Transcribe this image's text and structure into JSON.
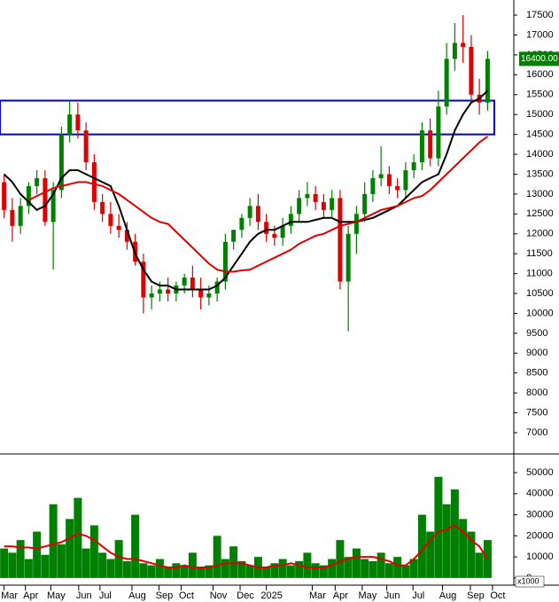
{
  "chart_data": [
    {
      "type": "candlestick",
      "up_color": "#008000",
      "down_color": "#e00000",
      "open": [
        13300,
        12600,
        12200,
        12700,
        13200,
        13400,
        12300,
        13100,
        14500,
        15000,
        14600,
        13800,
        12800,
        12500,
        12200,
        12100,
        11800,
        11300,
        10400,
        10500,
        10600,
        10500,
        10700,
        10900,
        10600,
        10400,
        10500,
        10800,
        11800,
        12100,
        12400,
        12700,
        12300,
        12000,
        11900,
        12200,
        12500,
        12900,
        13000,
        12800,
        12600,
        12900,
        10800,
        12000,
        12500,
        13000,
        13400,
        13500,
        13200,
        13100,
        13600,
        13800,
        14600,
        13900,
        15200,
        16400,
        16800,
        16700,
        15500,
        15300
      ],
      "high": [
        13500,
        12900,
        12900,
        13300,
        13600,
        13600,
        13300,
        14700,
        15350,
        15300,
        14800,
        14000,
        13000,
        12800,
        12500,
        12300,
        12000,
        11500,
        10700,
        10800,
        10900,
        10800,
        11000,
        11200,
        10900,
        10700,
        10900,
        12000,
        12100,
        12500,
        12900,
        13000,
        12500,
        12200,
        12400,
        12700,
        13100,
        13300,
        13200,
        13000,
        13100,
        13100,
        12200,
        12700,
        13300,
        13600,
        14200,
        13700,
        13400,
        13800,
        14000,
        14800,
        14900,
        15600,
        16800,
        17300,
        17500,
        17000,
        15900,
        16600
      ],
      "low": [
        12400,
        11800,
        12000,
        12500,
        13000,
        12200,
        11100,
        12900,
        14300,
        14400,
        13600,
        12600,
        12300,
        12000,
        11900,
        11600,
        11200,
        10000,
        10100,
        10300,
        10300,
        10300,
        10500,
        10400,
        10100,
        10200,
        10300,
        10600,
        11600,
        11900,
        12200,
        12100,
        11800,
        11700,
        11700,
        12000,
        12300,
        12700,
        12600,
        12400,
        12400,
        10600,
        9550,
        11500,
        12300,
        12800,
        13200,
        13000,
        12900,
        12900,
        13400,
        13600,
        13700,
        13700,
        15000,
        16100,
        16300,
        15300,
        15000,
        15100
      ],
      "close": [
        12600,
        12200,
        12700,
        13200,
        13400,
        12300,
        13100,
        14500,
        15000,
        14600,
        13800,
        12800,
        12500,
        12200,
        12100,
        11800,
        11300,
        10400,
        10500,
        10600,
        10500,
        10700,
        10900,
        10600,
        10400,
        10500,
        10800,
        11800,
        12100,
        12400,
        12700,
        12300,
        12000,
        11900,
        12200,
        12500,
        12900,
        13000,
        12800,
        12600,
        12900,
        10800,
        12000,
        12500,
        13000,
        13400,
        13500,
        13200,
        13100,
        13600,
        13800,
        14600,
        13900,
        15200,
        16400,
        16800,
        16700,
        15500,
        15300,
        16400
      ],
      "series": [
        {
          "color": "#000000",
          "values": [
            13500,
            13300,
            13000,
            12800,
            12600,
            12700,
            13000,
            13400,
            13600,
            13600,
            13500,
            13400,
            13300,
            13200,
            12700,
            12100,
            11500,
            11100,
            10800,
            10700,
            10700,
            10600,
            10600,
            10600,
            10600,
            10600,
            10700,
            10900,
            11200,
            11500,
            11800,
            12000,
            12100,
            12100,
            12200,
            12300,
            12300,
            12300,
            12350,
            12400,
            12400,
            12300,
            12300,
            12300,
            12350,
            12400,
            12500,
            12600,
            12700,
            12900,
            13100,
            13300,
            13400,
            13500,
            14000,
            14600,
            15000,
            15300,
            15400,
            15600
          ]
        },
        {
          "color": "#e00000",
          "values": [
            null,
            null,
            null,
            12850,
            12950,
            13050,
            13150,
            13200,
            13250,
            13300,
            13300,
            13250,
            13200,
            13100,
            13000,
            12850,
            12700,
            12550,
            12400,
            12300,
            12250,
            12050,
            11850,
            11650,
            11450,
            11250,
            11100,
            11050,
            11050,
            11080,
            11100,
            11200,
            11300,
            11400,
            11500,
            11600,
            11750,
            11850,
            11950,
            12000,
            12100,
            12200,
            12250,
            12300,
            12400,
            12500,
            12600,
            12650,
            12700,
            12800,
            12900,
            12950,
            13100,
            13300,
            13500,
            13700,
            13900,
            14100,
            14300,
            14450
          ]
        }
      ],
      "zone": {
        "low": 14500,
        "high": 15350,
        "color": "#0000cc"
      },
      "last_price": {
        "value": 16400,
        "label": "16400.00",
        "color": "#008000"
      },
      "xlim": [
        -0.5,
        62.2
      ],
      "xticks": [
        {
          "value": 0,
          "label": "Mar"
        },
        {
          "value": 2.6,
          "label": "Apr"
        },
        {
          "value": 5.7,
          "label": "May"
        },
        {
          "value": 9.1,
          "label": "Jun"
        },
        {
          "value": 11.7,
          "label": "Jul"
        },
        {
          "value": 15.6,
          "label": "Aug"
        },
        {
          "value": 18.9,
          "label": "Sep"
        },
        {
          "value": 21.6,
          "label": "Oct"
        },
        {
          "value": 25.5,
          "label": "Nov"
        },
        {
          "value": 28.8,
          "label": "Dec"
        },
        {
          "value": 32.0,
          "label": "2025"
        },
        {
          "value": 37.6,
          "label": "Mar"
        },
        {
          "value": 40.4,
          "label": "Apr"
        },
        {
          "value": 43.7,
          "label": "May"
        },
        {
          "value": 46.7,
          "label": "Jun"
        },
        {
          "value": 49.9,
          "label": "Jul"
        },
        {
          "value": 53.5,
          "label": "Aug"
        },
        {
          "value": 56.9,
          "label": "Sep"
        },
        {
          "value": 59.6,
          "label": "Oct"
        }
      ],
      "ylim": [
        6510,
        17880
      ],
      "yticks": [
        7000,
        7500,
        8000,
        8500,
        9000,
        9500,
        10000,
        10500,
        11000,
        11500,
        12000,
        12500,
        13000,
        13500,
        14000,
        14500,
        15000,
        15500,
        16000,
        16500,
        17000,
        17500
      ]
    },
    {
      "type": "bar",
      "color": "#008000",
      "values": [
        14000,
        12000,
        18000,
        9000,
        22000,
        11000,
        35000,
        16000,
        28000,
        38000,
        14000,
        25000,
        12000,
        9000,
        18000,
        8000,
        30000,
        7000,
        6000,
        9000,
        5000,
        7000,
        6000,
        12000,
        5000,
        6000,
        20000,
        9000,
        15000,
        8000,
        6000,
        10000,
        5000,
        7000,
        9000,
        6000,
        8000,
        12000,
        7000,
        6000,
        9000,
        18000,
        10000,
        14000,
        9000,
        8000,
        12000,
        7000,
        10000,
        6000,
        9000,
        30000,
        22000,
        48000,
        35000,
        42000,
        28000,
        22000,
        12000,
        18000
      ],
      "series": [
        {
          "color": "#e00000",
          "values": [
            15000,
            15000,
            14500,
            14500,
            14000,
            15000,
            16000,
            17000,
            19000,
            21000,
            20000,
            18000,
            15000,
            12000,
            10000,
            9000,
            9000,
            8000,
            7000,
            6000,
            5000,
            5000,
            6000,
            5000,
            5000,
            5000,
            6000,
            7000,
            7000,
            7000,
            6000,
            5000,
            5000,
            6000,
            6000,
            7000,
            6000,
            5000,
            5000,
            5000,
            6000,
            8000,
            9000,
            10000,
            10000,
            10000,
            9000,
            8000,
            6000,
            6000,
            9000,
            13000,
            18000,
            22000,
            23000,
            25000,
            22000,
            18000,
            15000,
            9000
          ]
        }
      ],
      "unit_label": "x1000",
      "ylim": [
        -3400,
        57600
      ],
      "yticks": [
        0,
        10000,
        20000,
        30000,
        40000,
        50000
      ]
    }
  ]
}
